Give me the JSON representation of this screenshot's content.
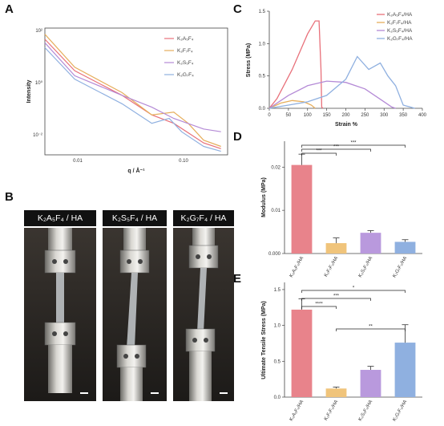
{
  "figure": {
    "panels": {
      "A": "A",
      "B": "B",
      "C": "C",
      "D": "D",
      "E": "E"
    }
  },
  "panel_a": {
    "ylabel": "Intensity",
    "xlabel": "q / Å⁻¹",
    "yticks": [
      "10²",
      "10⁰",
      "10⁻²"
    ],
    "xticks": [
      "0.01",
      "0.10"
    ],
    "legend": [
      "K₂A₅F₄",
      "K₂F₇F₄",
      "K₂S₅F₄",
      "K₂G₇F₄"
    ],
    "colors": [
      "#e8707a",
      "#e6ae5c",
      "#b48ad6",
      "#8fb0e0"
    ]
  },
  "panel_b": {
    "labels": [
      "K₂A₅F₄ / HA",
      "K₂S₅F₄ / HA",
      "K₂G₇F₄ / HA"
    ]
  },
  "panel_c": {
    "ylabel": "Stress (MPa)",
    "xlabel": "Strain %",
    "yticks": [
      "0.0",
      "0.5",
      "1.0",
      "1.5"
    ],
    "xticks": [
      "0",
      "50",
      "100",
      "150",
      "200",
      "250",
      "300",
      "350",
      "400"
    ],
    "legend": [
      "K₂A₅F₄/HA",
      "K₂F₇F₄/HA",
      "K₂S₅F₄/HA",
      "K₂G₇F₄/HA"
    ],
    "colors": [
      "#e8707a",
      "#e6ae5c",
      "#b48ad6",
      "#8fb0e0"
    ]
  },
  "panel_d": {
    "ylabel": "Modulus (MPa)",
    "yticks": [
      "0.000",
      "0.01",
      "0.02"
    ],
    "categories": [
      "K₂A₅F₄/HA",
      "K₂F₇F₄/HA",
      "K₂S₅F₄/HA",
      "K₂G₇F₄/HA"
    ],
    "sig": [
      "***",
      "***",
      "***"
    ]
  },
  "panel_e": {
    "ylabel": "Ultimate Tensile Stress (MPa)",
    "yticks": [
      "0.0",
      "0.5",
      "1.0",
      "1.5"
    ],
    "categories": [
      "K₂A₅F₄/HA",
      "K₂F₇F₄/HA",
      "K₂S₅F₄/HA",
      "K₂G₇F₄/HA"
    ],
    "sig": [
      "*",
      "***",
      "****",
      "**"
    ]
  },
  "chart_data": [
    {
      "type": "line",
      "log_x": true,
      "log_y": true,
      "series": [
        {
          "name": "K₂A₅F₄",
          "x": [
            0.005,
            0.01,
            0.03,
            0.06,
            0.1,
            0.2,
            0.3
          ],
          "y": [
            40,
            3,
            0.4,
            0.08,
            0.04,
            0.008,
            0.005
          ]
        },
        {
          "name": "K₂F₇F₄",
          "x": [
            0.005,
            0.01,
            0.03,
            0.06,
            0.1,
            0.14,
            0.2,
            0.3
          ],
          "y": [
            60,
            4,
            0.5,
            0.08,
            0.1,
            0.04,
            0.01,
            0.006
          ]
        },
        {
          "name": "K₂S₅F₄",
          "x": [
            0.005,
            0.01,
            0.03,
            0.06,
            0.1,
            0.2,
            0.3
          ],
          "y": [
            30,
            2,
            0.4,
            0.15,
            0.06,
            0.025,
            0.02
          ]
        },
        {
          "name": "K₂G₇F₄",
          "x": [
            0.005,
            0.01,
            0.03,
            0.06,
            0.09,
            0.12,
            0.2,
            0.3
          ],
          "y": [
            20,
            1.5,
            0.2,
            0.04,
            0.06,
            0.02,
            0.006,
            0.004
          ]
        }
      ]
    },
    {
      "type": "line",
      "ylim": [
        0,
        1.5
      ],
      "xlim": [
        0,
        400
      ],
      "series": [
        {
          "name": "K₂A₅F₄/HA",
          "x": [
            0,
            20,
            60,
            100,
            120,
            130,
            135,
            137,
            140
          ],
          "y": [
            0,
            0.15,
            0.6,
            1.15,
            1.35,
            1.35,
            0.6,
            0.02,
            0
          ]
        },
        {
          "name": "K₂F₇F₄/HA",
          "x": [
            0,
            30,
            60,
            90,
            110,
            120
          ],
          "y": [
            0,
            0.08,
            0.12,
            0.1,
            0.05,
            0
          ]
        },
        {
          "name": "K₂S₅F₄/HA",
          "x": [
            0,
            50,
            100,
            150,
            200,
            250,
            300,
            320,
            330
          ],
          "y": [
            0,
            0.2,
            0.35,
            0.42,
            0.4,
            0.3,
            0.1,
            0.02,
            0
          ]
        },
        {
          "name": "K₂G₇F₄/HA",
          "x": [
            0,
            50,
            100,
            150,
            200,
            230,
            260,
            290,
            310,
            330,
            350,
            380
          ],
          "y": [
            0,
            0.05,
            0.1,
            0.2,
            0.45,
            0.8,
            0.6,
            0.7,
            0.5,
            0.35,
            0.05,
            0
          ]
        }
      ]
    },
    {
      "type": "bar",
      "categories": [
        "K₂A₅F₄/HA",
        "K₂F₇F₄/HA",
        "K₂S₅F₄/HA",
        "K₂G₇F₄/HA"
      ],
      "values": [
        0.0205,
        0.0024,
        0.0048,
        0.0027
      ],
      "errors": [
        0.0025,
        0.0012,
        0.0005,
        0.0005
      ],
      "ylim": [
        0,
        0.026
      ],
      "colors": [
        "#e8838b",
        "#f0c47b",
        "#b999dd",
        "#8fb0e0"
      ],
      "ylabel": "Modulus (MPa)"
    },
    {
      "type": "bar",
      "categories": [
        "K₂A₅F₄/HA",
        "K₂F₇F₄/HA",
        "K₂S₅F₄/HA",
        "K₂G₇F₄/HA"
      ],
      "values": [
        1.22,
        0.12,
        0.38,
        0.76
      ],
      "errors": [
        0.15,
        0.02,
        0.05,
        0.25
      ],
      "ylim": [
        0,
        1.6
      ],
      "colors": [
        "#e8838b",
        "#f0c47b",
        "#b999dd",
        "#8fb0e0"
      ],
      "ylabel": "Ultimate Tensile Stress (MPa)"
    }
  ]
}
